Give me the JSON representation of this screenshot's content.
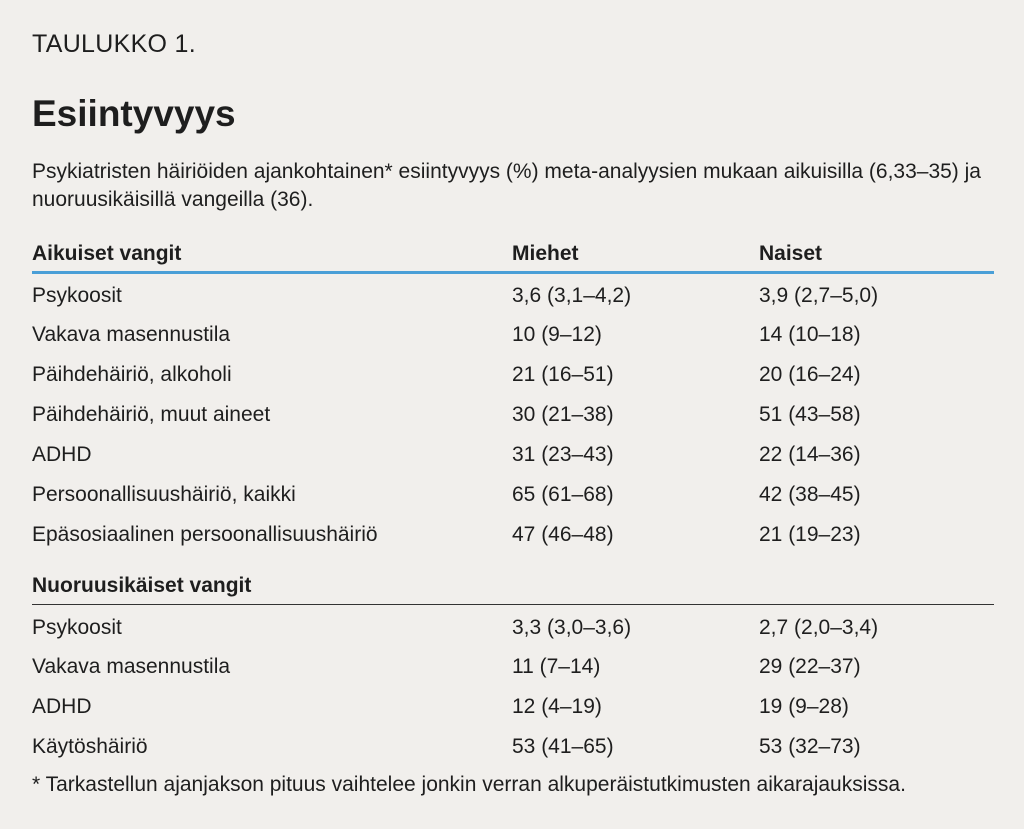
{
  "label": "TAULUKKO 1.",
  "title": "Esiintyvyys",
  "caption": "Psykiatristen häiriöiden ajankohtainen* esiintyvyys (%) meta-analyysien mukaan aikuisilla (6,33–35) ja nuoruusikäisillä vangeilla (36).",
  "columns": {
    "men": "Miehet",
    "women": "Naiset"
  },
  "adults": {
    "heading": "Aikuiset vangit",
    "rows": [
      {
        "label": "Psykoosit",
        "men": "3,6 (3,1–4,2)",
        "women": "3,9 (2,7–5,0)"
      },
      {
        "label": "Vakava masennustila",
        "men": "10 (9–12)",
        "women": "14 (10–18)"
      },
      {
        "label": "Päihdehäiriö, alkoholi",
        "men": "21 (16–51)",
        "women": "20 (16–24)"
      },
      {
        "label": "Päihdehäiriö, muut aineet",
        "men": "30 (21–38)",
        "women": "51 (43–58)"
      },
      {
        "label": "ADHD",
        "men": "31 (23–43)",
        "women": "22 (14–36)"
      },
      {
        "label": "Persoonallisuushäiriö, kaikki",
        "men": "65 (61–68)",
        "women": "42 (38–45)"
      },
      {
        "label": "Epäsosiaalinen persoonallisuushäiriö",
        "men": "47 (46–48)",
        "women": "21 (19–23)"
      }
    ]
  },
  "youth": {
    "heading": "Nuoruusikäiset vangit",
    "rows": [
      {
        "label": "Psykoosit",
        "men": "3,3 (3,0–3,6)",
        "women": "2,7 (2,0–3,4)"
      },
      {
        "label": "Vakava masennustila",
        "men": "11 (7–14)",
        "women": "29 (22–37)"
      },
      {
        "label": "ADHD",
        "men": "12 (4–19)",
        "women": "19 (9–28)"
      },
      {
        "label": "Käytöshäiriö",
        "men": "53 (41–65)",
        "women": "53 (32–73)"
      }
    ]
  },
  "footnote": "* Tarkastellun ajanjakson pituus vaihtelee jonkin verran alkuperäistutkimusten aikarajauksissa.",
  "colors": {
    "background": "#f1efec",
    "accent_rule": "#4a9fd7",
    "text": "#1e1e1e"
  }
}
